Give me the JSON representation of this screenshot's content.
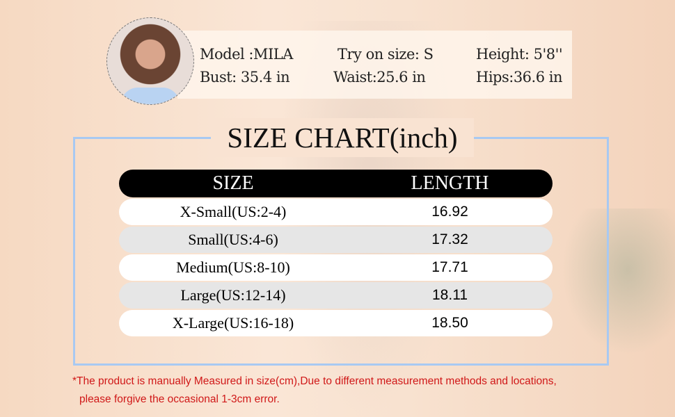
{
  "model_info": {
    "model": "Model :MILA",
    "try_on_size": "Try on size: S",
    "height": "Height: 5'8''",
    "bust": "Bust: 35.4 in",
    "waist": "Waist:25.6 in",
    "hips": "Hips:36.6 in"
  },
  "title": "SIZE CHART(inch)",
  "table": {
    "headers": [
      "SIZE",
      "LENGTH"
    ],
    "rows": [
      {
        "size": "X-Small(US:2-4)",
        "length": "16.92"
      },
      {
        "size": "Small(US:4-6)",
        "length": "17.32"
      },
      {
        "size": "Medium(US:8-10)",
        "length": "17.71"
      },
      {
        "size": "Large(US:12-14)",
        "length": "18.11"
      },
      {
        "size": "X-Large(US:16-18)",
        "length": "18.50"
      }
    ]
  },
  "note": {
    "line1": "*The product is manually Measured in size(cm),Due to different measurement methods and locations,",
    "line2": "please forgive the occasional 1-3cm error."
  },
  "colors": {
    "frame": "#a8c9f2",
    "note": "#d01818",
    "header_bg": "#000000",
    "row_alt": "#e6e6e6"
  }
}
